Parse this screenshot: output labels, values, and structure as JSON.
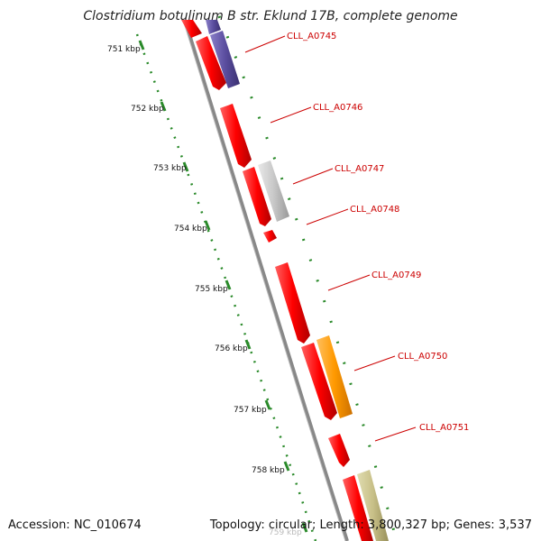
{
  "title": "Clostridium botulinum B str. Eklund 17B, complete genome",
  "footer": {
    "accession": "Accession: NC_010674",
    "summary": "Topology: circular; Length: 3,800,327 bp; Genes: 3,537"
  },
  "ruler": {
    "ticks": [
      "751 kbp",
      "752 kbp",
      "753 kbp",
      "754 kbp",
      "755 kbp",
      "756 kbp",
      "757 kbp",
      "758 kbp",
      "759 kbp"
    ]
  },
  "genes": [
    {
      "label": "CLL_A0745"
    },
    {
      "label": "CLL_A0746"
    },
    {
      "label": "CLL_A0747"
    },
    {
      "label": "CLL_A0748"
    },
    {
      "label": "CLL_A0749"
    },
    {
      "label": "CLL_A0750"
    },
    {
      "label": "CLL_A0751"
    }
  ],
  "colors": {
    "cds": "#ff0000",
    "purple": "#5b4ea0",
    "gray": "#c8c8c8",
    "orange": "#ff9900",
    "olive": "#c8c088",
    "tick": "#2a8a2a",
    "backbone": "#888888",
    "label": "#cc0000"
  }
}
